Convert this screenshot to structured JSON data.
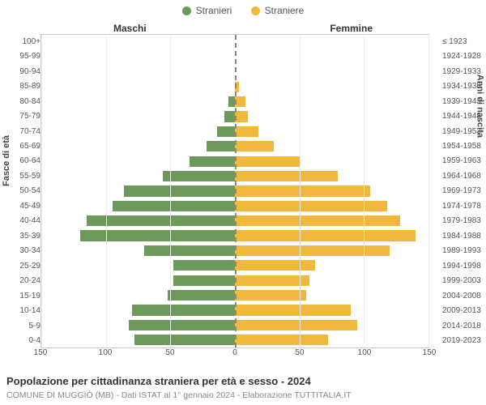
{
  "legend": {
    "items": [
      {
        "label": "Stranieri",
        "color": "#6b9a5b"
      },
      {
        "label": "Straniere",
        "color": "#f0b83c"
      }
    ]
  },
  "side_titles": {
    "left": "Maschi",
    "right": "Femmine"
  },
  "y_axis_left_label": "Fasce di età",
  "y_axis_right_label": "Anni di nascita",
  "age_labels": [
    "100+",
    "95-99",
    "90-94",
    "85-89",
    "80-84",
    "75-79",
    "70-74",
    "65-69",
    "60-64",
    "55-59",
    "50-54",
    "45-49",
    "40-44",
    "35-39",
    "30-34",
    "25-29",
    "20-24",
    "15-19",
    "10-14",
    "5-9",
    "0-4"
  ],
  "birth_labels": [
    "≤ 1923",
    "1924-1928",
    "1929-1933",
    "1934-1938",
    "1939-1943",
    "1944-1948",
    "1949-1953",
    "1954-1958",
    "1959-1963",
    "1964-1968",
    "1969-1973",
    "1974-1978",
    "1979-1983",
    "1984-1988",
    "1989-1993",
    "1994-1998",
    "1999-2003",
    "2004-2008",
    "2009-2013",
    "2014-2018",
    "2019-2023"
  ],
  "pyramid": {
    "type": "population-pyramid",
    "x_max": 150,
    "x_ticks": [
      150,
      100,
      50,
      0,
      50,
      100,
      150
    ],
    "male_color": "#6b9a5b",
    "female_color": "#f0b83c",
    "background_color": "#ffffff",
    "grid_color": "#eeeeee",
    "border_color": "#cccccc",
    "center_line_color": "#888888",
    "bar_height_ratio": 0.72,
    "male": [
      0,
      0,
      0,
      0,
      5,
      8,
      14,
      22,
      35,
      56,
      86,
      95,
      115,
      120,
      70,
      48,
      48,
      52,
      80,
      82,
      78
    ],
    "female": [
      0,
      0,
      0,
      3,
      8,
      10,
      18,
      30,
      50,
      80,
      105,
      118,
      128,
      140,
      120,
      62,
      58,
      55,
      90,
      95,
      72
    ]
  },
  "title": "Popolazione per cittadinanza straniera per età e sesso - 2024",
  "subtitle": "COMUNE DI MUGGIÒ (MB) - Dati ISTAT al 1° gennaio 2024 - Elaborazione TUTTITALIA.IT",
  "font": {
    "label_size_pt": 10,
    "title_size_pt": 13,
    "subtitle_size_pt": 10.5
  }
}
